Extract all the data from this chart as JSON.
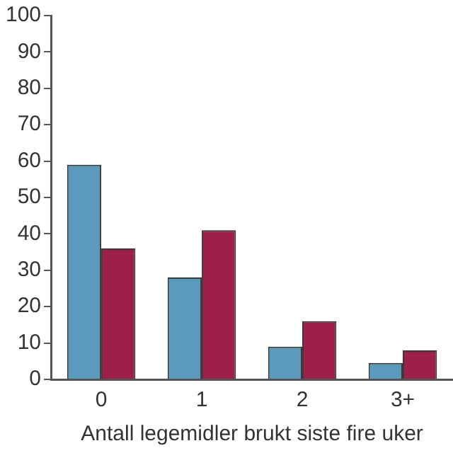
{
  "chart_data": {
    "type": "bar",
    "xlabel": "Antall legemidler brukt siste fire uker",
    "categories": [
      "0",
      "1",
      "2",
      "3+"
    ],
    "series": [
      {
        "color": "#5a9bbd",
        "values": [
          59,
          28,
          9,
          4.5
        ]
      },
      {
        "color": "#9e1e4c",
        "values": [
          36,
          41,
          16,
          8
        ]
      }
    ],
    "ylim": [
      0,
      100
    ],
    "yticks": [
      0,
      10,
      20,
      30,
      40,
      50,
      60,
      70,
      80,
      90,
      100
    ],
    "grid": false,
    "legend": false
  }
}
